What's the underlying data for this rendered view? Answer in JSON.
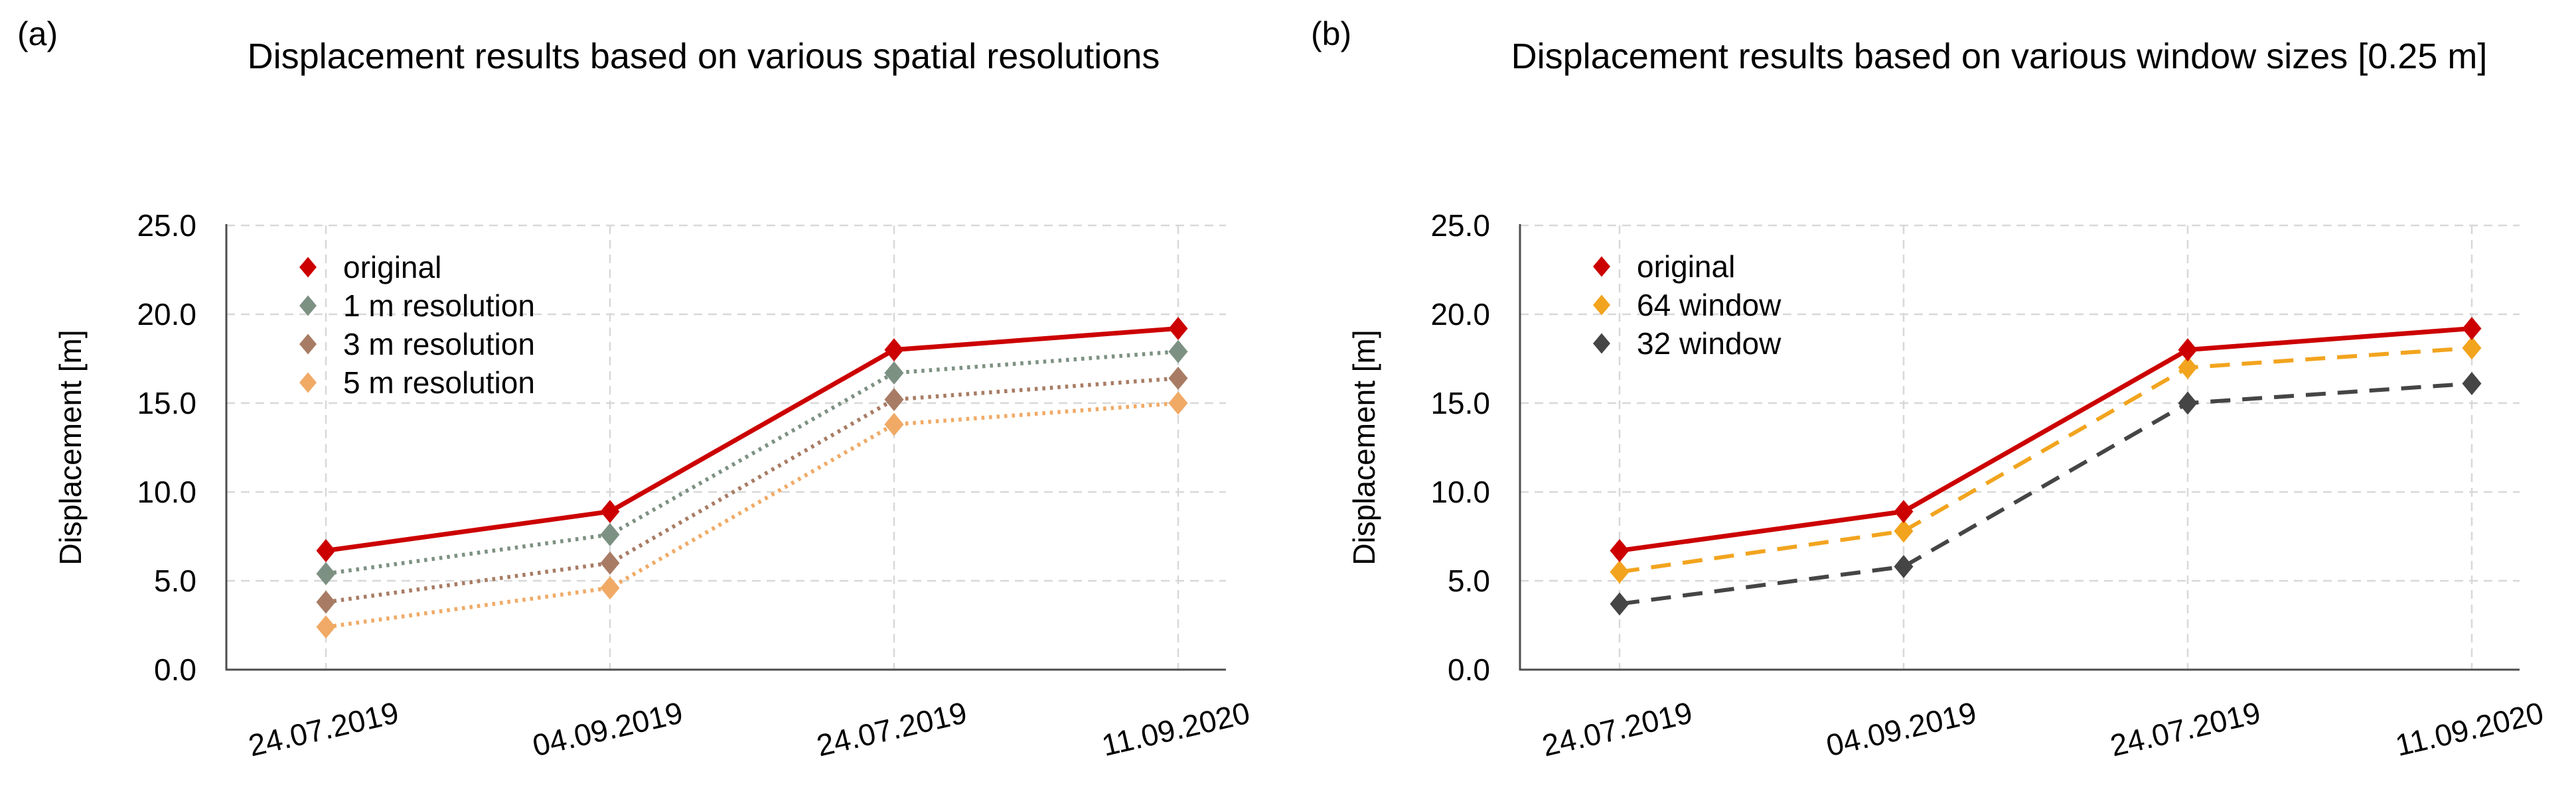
{
  "figure": {
    "background": "#ffffff",
    "text_color": "#000000",
    "axis_color": "#4d4d4d",
    "grid_color": "#d8d8d8"
  },
  "chart_data": [
    {
      "type": "line",
      "panel_label": "(a)",
      "title": "Displacement results based on various spatial resolutions",
      "xlabel": "",
      "ylabel": "Displacement [m]",
      "categories": [
        "24.07.2019",
        "04.09.2019",
        "24.07.2019",
        "11.09.2020"
      ],
      "ylim": [
        0,
        25
      ],
      "yticks": [
        0,
        5,
        10,
        15,
        20,
        25
      ],
      "ytick_labels": [
        "0.0",
        "5.0",
        "10.0",
        "15.0",
        "20.0",
        "25.0"
      ],
      "grid": true,
      "legend_position": "upper left inside",
      "marker": "diamond",
      "series": [
        {
          "name": "original",
          "color": "#cc0000",
          "line_style": "solid",
          "values": [
            6.7,
            8.9,
            18.0,
            19.2
          ]
        },
        {
          "name": "1 m resolution",
          "color": "#7d9183",
          "line_style": "dotted",
          "values": [
            5.4,
            7.6,
            16.7,
            17.9
          ]
        },
        {
          "name": "3 m resolution",
          "color": "#a87c64",
          "line_style": "dotted",
          "values": [
            3.8,
            6.0,
            15.2,
            16.4
          ]
        },
        {
          "name": "5 m resolution",
          "color": "#f0aa66",
          "line_style": "dotted",
          "values": [
            2.4,
            4.6,
            13.8,
            15.0
          ]
        }
      ]
    },
    {
      "type": "line",
      "panel_label": "(b)",
      "title": "Displacement results based on various window sizes [0.25 m]",
      "xlabel": "",
      "ylabel": "Displacement [m]",
      "categories": [
        "24.07.2019",
        "04.09.2019",
        "24.07.2019",
        "11.09.2020"
      ],
      "ylim": [
        0,
        25
      ],
      "yticks": [
        0,
        5,
        10,
        15,
        20,
        25
      ],
      "ytick_labels": [
        "0.0",
        "5.0",
        "10.0",
        "15.0",
        "20.0",
        "25.0"
      ],
      "grid": true,
      "legend_position": "upper left inside",
      "marker": "diamond",
      "series": [
        {
          "name": "original",
          "color": "#cc0000",
          "line_style": "solid",
          "values": [
            6.7,
            8.9,
            18.0,
            19.2
          ]
        },
        {
          "name": "64 window",
          "color": "#f2a41e",
          "line_style": "dashed",
          "values": [
            5.5,
            7.8,
            17.0,
            18.1
          ]
        },
        {
          "name": "32 window",
          "color": "#454545",
          "line_style": "dashed",
          "values": [
            3.7,
            5.8,
            15.0,
            16.1
          ]
        }
      ]
    }
  ]
}
